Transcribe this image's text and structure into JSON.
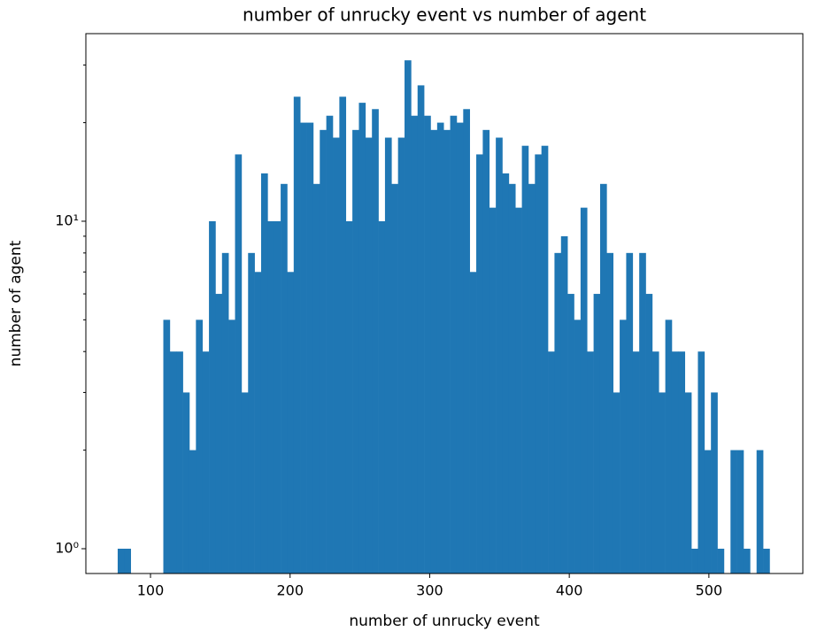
{
  "chart_data": {
    "type": "histogram",
    "title": "number of unrucky event vs number of agent",
    "xlabel": "number of unrucky event",
    "ylabel": "number of agent",
    "color": "#1f77b4",
    "yscale": "log",
    "bins": [
      76.5,
      81.17,
      85.84,
      90.51,
      95.18,
      99.85,
      104.52,
      109.19,
      113.86,
      118.53,
      123.2,
      127.87,
      132.54,
      137.21,
      141.88,
      146.55,
      151.22,
      155.89,
      160.56,
      165.23,
      169.9,
      174.57,
      179.24,
      183.91,
      188.58,
      193.25,
      197.92,
      202.59,
      207.26,
      211.93,
      216.6,
      221.27,
      225.94,
      230.61,
      235.28,
      239.95,
      244.62,
      249.29,
      253.96,
      258.63,
      263.3,
      267.97,
      272.64,
      277.31,
      281.98,
      286.65,
      291.32,
      295.99,
      300.66,
      305.33,
      310,
      314.67,
      319.34,
      324.01,
      328.68,
      333.35,
      338.02,
      342.69,
      347.36,
      352.03,
      356.7,
      361.37,
      366.04,
      370.71,
      375.38,
      380.05,
      384.72,
      389.39,
      394.06,
      398.73,
      403.4,
      408.07,
      412.74,
      417.41,
      422.08,
      426.75,
      431.42,
      436.09,
      440.76,
      445.43,
      450.1,
      454.77,
      459.44,
      464.11,
      468.78,
      473.45,
      478.12,
      482.79,
      487.46,
      492.13,
      496.8,
      501.47,
      506.14,
      510.81,
      515.48,
      520.15,
      524.82,
      529.49,
      534.16,
      538.83,
      543.5
    ],
    "counts": [
      1,
      1,
      0,
      0,
      0,
      0,
      0,
      5,
      4,
      4,
      3,
      2,
      5,
      4,
      10,
      6,
      8,
      5,
      16,
      3,
      8,
      7,
      14,
      10,
      10,
      13,
      7,
      24,
      20,
      20,
      13,
      19,
      21,
      18,
      24,
      10,
      19,
      23,
      18,
      22,
      10,
      18,
      13,
      18,
      31,
      21,
      26,
      21,
      19,
      20,
      19,
      21,
      20,
      22,
      7,
      16,
      19,
      11,
      18,
      14,
      13,
      11,
      17,
      13,
      16,
      17,
      4,
      8,
      9,
      6,
      5,
      11,
      4,
      6,
      13,
      8,
      3,
      5,
      8,
      4,
      8,
      6,
      4,
      3,
      5,
      4,
      4,
      3,
      1,
      4,
      2,
      3,
      1,
      0,
      2,
      2,
      1,
      0,
      2,
      1
    ],
    "xlim": [
      53.7,
      567.3
    ],
    "xticks": [
      100,
      200,
      300,
      400,
      500
    ],
    "ylim": [
      0.84,
      37.4
    ],
    "yticks": [
      {
        "value": 1,
        "label": "10⁰"
      },
      {
        "value": 10,
        "label": "10¹"
      }
    ],
    "yminorticks": [
      2,
      3,
      4,
      5,
      6,
      7,
      8,
      9,
      20,
      30
    ]
  }
}
